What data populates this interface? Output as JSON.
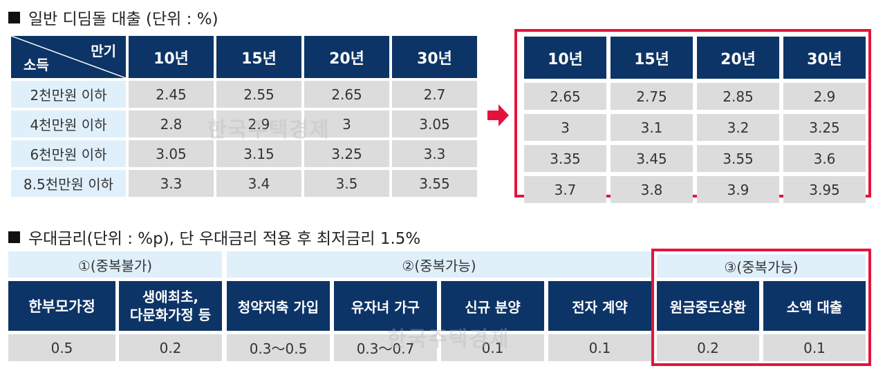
{
  "loan_section": {
    "title": "일반 디딤돌 대출 (단위 : %)",
    "corner_top": "만기",
    "corner_bottom": "소득",
    "terms": [
      "10년",
      "15년",
      "20년",
      "30년"
    ],
    "rows": [
      {
        "income": "2천만원 이하",
        "rates": [
          "2.45",
          "2.55",
          "2.65",
          "2.7"
        ],
        "new_rates": [
          "2.65",
          "2.75",
          "2.85",
          "2.9"
        ]
      },
      {
        "income": "4천만원 이하",
        "rates": [
          "2.8",
          "2.9",
          "3",
          "3.05"
        ],
        "new_rates": [
          "3",
          "3.1",
          "3.2",
          "3.25"
        ]
      },
      {
        "income": "6천만원 이하",
        "rates": [
          "3.05",
          "3.15",
          "3.25",
          "3.3"
        ],
        "new_rates": [
          "3.35",
          "3.45",
          "3.55",
          "3.6"
        ]
      },
      {
        "income": "8.5천만원 이하",
        "rates": [
          "3.3",
          "3.4",
          "3.5",
          "3.55"
        ],
        "new_rates": [
          "3.7",
          "3.8",
          "3.9",
          "3.95"
        ]
      }
    ]
  },
  "discount_section": {
    "title": "우대금리(단위 : %p), 단 우대금리 적용 후 최저금리 1.5%",
    "groups": [
      "①(중복불가)",
      "②(중복가능)",
      "③(중복가능)"
    ],
    "items": [
      {
        "label": "한부모가정",
        "value": "0.5"
      },
      {
        "label": "생애최초,",
        "label2": "다문화가정 등",
        "value": "0.2"
      },
      {
        "label": "청약저축 가입",
        "value": "0.3～0.5"
      },
      {
        "label": "유자녀 가구",
        "value": "0.3～0.7"
      },
      {
        "label": "신규 분양",
        "value": "0.1"
      },
      {
        "label": "전자 계약",
        "value": "0.1"
      },
      {
        "label": "원금중도상환",
        "value": "0.2"
      },
      {
        "label": "소액 대출",
        "value": "0.1"
      }
    ]
  },
  "watermark": "한국주택경제",
  "colors": {
    "navy": "#0d3466",
    "highlight_red": "#e3143c",
    "grey_cell": "#dcdcdc",
    "light_blue": "#dff0fb"
  }
}
